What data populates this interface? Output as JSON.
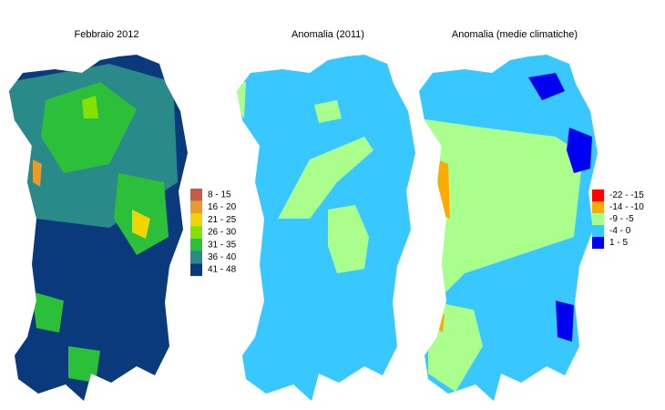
{
  "maps": [
    {
      "title": "Febbraio 2012",
      "legend": [
        {
          "label": "8 - 15",
          "color": "#c65a44"
        },
        {
          "label": "16 - 20",
          "color": "#e89a2c"
        },
        {
          "label": "21 - 25",
          "color": "#f2d400"
        },
        {
          "label": "26 - 30",
          "color": "#86e000"
        },
        {
          "label": "31 - 35",
          "color": "#2cbf3a"
        },
        {
          "label": "36 - 40",
          "color": "#2a8a8a"
        },
        {
          "label": "41 - 48",
          "color": "#0b3a7c"
        }
      ]
    },
    {
      "title": "Anomalia (2011)"
    },
    {
      "title": "Anomalia (medie climatiche)",
      "legend": [
        {
          "label": "-22 - -15",
          "color": "#ff0000"
        },
        {
          "label": "-14 - -10",
          "color": "#ffaa00"
        },
        {
          "label": "-9 - -5",
          "color": "#aaff8c"
        },
        {
          "label": "-4 - 0",
          "color": "#38c8ff"
        },
        {
          "label": "1 - 5",
          "color": "#0000f0"
        }
      ]
    }
  ]
}
